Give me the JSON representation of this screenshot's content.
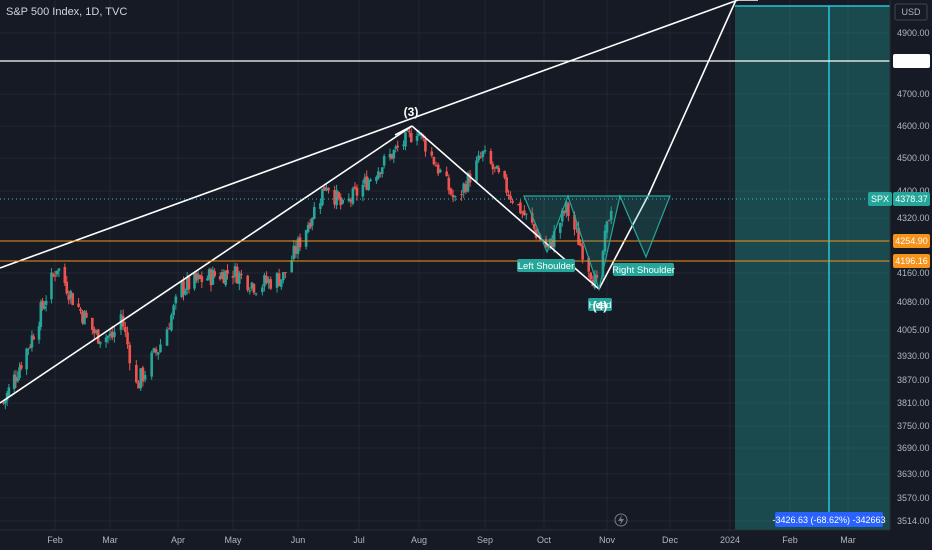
{
  "header": {
    "title": "S&P 500 Index, 1D, TVC"
  },
  "currency": "USD",
  "colors": {
    "up": "#26a69a",
    "down": "#ef5350",
    "grid": "#232733",
    "orange": "#f7931a",
    "cyan": "#26c6da",
    "pattern": "#26a69a"
  },
  "chart_data": {
    "type": "candlestick",
    "title": "S&P 500 Index, 1D, TVC",
    "xlabel": "",
    "ylabel": "",
    "x_ticks": [
      "Feb",
      "Mar",
      "Apr",
      "May",
      "Jun",
      "Jul",
      "Aug",
      "Sep",
      "Oct",
      "Nov",
      "Dec",
      "2024",
      "Feb",
      "Mar"
    ],
    "y_ticks": [
      "4900.00",
      "4700.00",
      "4600.00",
      "4500.00",
      "4400.00",
      "4320.00",
      "4160.00",
      "4080.00",
      "4005.00",
      "3930.00",
      "3870.00",
      "3810.00",
      "3750.00",
      "3690.00",
      "3630.00",
      "3570.00",
      "3514.00"
    ],
    "price_keypoints": [
      {
        "date": "2023-01-03",
        "price": 3810
      },
      {
        "date": "2023-01-18",
        "price": 3970
      },
      {
        "date": "2023-02-02",
        "price": 4180
      },
      {
        "date": "2023-02-10",
        "price": 4090
      },
      {
        "date": "2023-02-22",
        "price": 3990
      },
      {
        "date": "2023-03-02",
        "price": 3985
      },
      {
        "date": "2023-03-06",
        "price": 4045
      },
      {
        "date": "2023-03-13",
        "price": 3855
      },
      {
        "date": "2023-03-23",
        "price": 3950
      },
      {
        "date": "2023-04-03",
        "price": 4120
      },
      {
        "date": "2023-04-18",
        "price": 4150
      },
      {
        "date": "2023-05-01",
        "price": 4165
      },
      {
        "date": "2023-05-12",
        "price": 4125
      },
      {
        "date": "2023-05-25",
        "price": 4150
      },
      {
        "date": "2023-06-15",
        "price": 4425
      },
      {
        "date": "2023-06-23",
        "price": 4350
      },
      {
        "date": "2023-07-12",
        "price": 4475
      },
      {
        "date": "2023-07-31",
        "price": 4590
      },
      {
        "date": "2023-08-18",
        "price": 4370
      },
      {
        "date": "2023-08-31",
        "price": 4510
      },
      {
        "date": "2023-09-21",
        "price": 4330
      },
      {
        "date": "2023-10-03",
        "price": 4230
      },
      {
        "date": "2023-10-12",
        "price": 4350
      },
      {
        "date": "2023-10-27",
        "price": 4120
      },
      {
        "date": "2023-11-03",
        "price": 4360
      }
    ],
    "horizontal_levels": [
      {
        "label": "4810.38",
        "price": 4810.38,
        "color": "white"
      },
      {
        "label": "4378.37",
        "price": 4378.37,
        "color": "cyan-dotted",
        "tag": "SPX"
      },
      {
        "label": "4254.90",
        "price": 4254.9,
        "color": "orange"
      },
      {
        "label": "4196.16",
        "price": 4196.16,
        "color": "orange"
      }
    ],
    "annotations": [
      {
        "text": "(3)",
        "type": "wave"
      },
      {
        "text": "(4)",
        "type": "wave"
      },
      {
        "text": "Left Shoulder",
        "type": "pattern-label"
      },
      {
        "text": "Head",
        "type": "pattern-label"
      },
      {
        "text": "Right Shoulder",
        "type": "pattern-label"
      }
    ],
    "measure_label": "-3426.63 (-68.62%) -342663",
    "legend": "none",
    "grid": true
  }
}
